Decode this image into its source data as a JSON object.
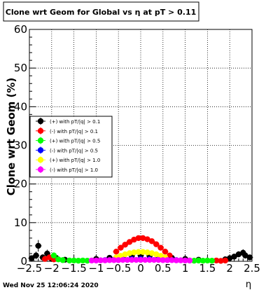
{
  "chart_data": {
    "type": "scatter",
    "title": "Clone wrt Geom for Global vs   η at pT > 0.11",
    "xlabel": "η",
    "ylabel": "Clone wrt Geom (%)",
    "xlim": [
      -2.5,
      2.5
    ],
    "ylim": [
      0,
      60
    ],
    "x_ticks": [
      "−2.5",
      "−2",
      "−1.5",
      "−1",
      "−0.5",
      "0",
      "0.5",
      "1",
      "1.5",
      "2",
      "2.5"
    ],
    "y_ticks": [
      "0",
      "10",
      "20",
      "30",
      "40",
      "50",
      "60"
    ],
    "grid": true,
    "legend_position": "left-middle",
    "footer": "Wed Nov 25 12:06:24 2020",
    "series": [
      {
        "name": "(+) with pT/|q| > 0.1",
        "color": "#000000",
        "points": [
          {
            "x": -2.45,
            "y": 0.8,
            "err": 0.6
          },
          {
            "x": -2.35,
            "y": 1.5,
            "err": 1.0
          },
          {
            "x": -2.3,
            "y": 4.0,
            "err": 1.5
          },
          {
            "x": -2.2,
            "y": 1.0,
            "err": 0.8
          },
          {
            "x": -2.1,
            "y": 2.0,
            "err": 1.0
          },
          {
            "x": -2.0,
            "y": 0.6,
            "err": 0.5
          },
          {
            "x": -1.9,
            "y": 0.9,
            "err": 0.6
          },
          {
            "x": -1.7,
            "y": 0.4,
            "err": 0.3
          },
          {
            "x": -1.0,
            "y": 0.6,
            "err": 0.2
          },
          {
            "x": -0.7,
            "y": 0.9,
            "err": 0.2
          },
          {
            "x": -0.4,
            "y": 1.2,
            "err": 0.2
          },
          {
            "x": -0.2,
            "y": 1.4,
            "err": 0.2
          },
          {
            "x": 0.0,
            "y": 1.5,
            "err": 0.2
          },
          {
            "x": 0.2,
            "y": 1.4,
            "err": 0.2
          },
          {
            "x": 0.4,
            "y": 1.2,
            "err": 0.2
          },
          {
            "x": 0.7,
            "y": 0.9,
            "err": 0.2
          },
          {
            "x": 1.0,
            "y": 0.6,
            "err": 0.2
          },
          {
            "x": 1.3,
            "y": 0.4,
            "err": 0.2
          },
          {
            "x": 1.9,
            "y": 0.5,
            "err": 0.4
          },
          {
            "x": 2.0,
            "y": 0.8,
            "err": 0.5
          },
          {
            "x": 2.1,
            "y": 1.2,
            "err": 0.6
          },
          {
            "x": 2.2,
            "y": 1.8,
            "err": 0.8
          },
          {
            "x": 2.3,
            "y": 2.2,
            "err": 0.9
          },
          {
            "x": 2.35,
            "y": 1.5,
            "err": 0.8
          },
          {
            "x": 2.45,
            "y": 1.0,
            "err": 0.7
          }
        ]
      },
      {
        "name": "(-) with pT/|q| > 0.1",
        "color": "#ff0000",
        "points": [
          {
            "x": -2.15,
            "y": 0.6,
            "err": 0.5
          },
          {
            "x": -2.05,
            "y": 1.0,
            "err": 0.6
          },
          {
            "x": -1.95,
            "y": 0.5,
            "err": 0.4
          },
          {
            "x": -0.55,
            "y": 2.5,
            "err": 0.4
          },
          {
            "x": -0.45,
            "y": 3.5,
            "err": 0.4
          },
          {
            "x": -0.35,
            "y": 4.3,
            "err": 0.4
          },
          {
            "x": -0.25,
            "y": 5.0,
            "err": 0.4
          },
          {
            "x": -0.15,
            "y": 5.6,
            "err": 0.4
          },
          {
            "x": -0.05,
            "y": 6.0,
            "err": 0.4
          },
          {
            "x": 0.05,
            "y": 6.0,
            "err": 0.4
          },
          {
            "x": 0.15,
            "y": 5.7,
            "err": 0.4
          },
          {
            "x": 0.25,
            "y": 5.2,
            "err": 0.4
          },
          {
            "x": 0.35,
            "y": 4.4,
            "err": 0.4
          },
          {
            "x": 0.45,
            "y": 3.5,
            "err": 0.4
          },
          {
            "x": 0.55,
            "y": 2.5,
            "err": 0.4
          },
          {
            "x": 0.65,
            "y": 1.5,
            "err": 0.3
          },
          {
            "x": 1.7,
            "y": 0.2,
            "err": 0.2
          },
          {
            "x": 1.8,
            "y": 0.1,
            "err": 0.2
          },
          {
            "x": 1.9,
            "y": 0.2,
            "err": 0.2
          }
        ]
      },
      {
        "name": "(+) with pT/|q| > 0.5",
        "color": "#00ff00",
        "points": [
          {
            "x": -1.95,
            "y": 1.5,
            "err": 0.8
          },
          {
            "x": -1.85,
            "y": 0.5,
            "err": 0.4
          },
          {
            "x": -1.75,
            "y": 0.3,
            "err": 0.3
          },
          {
            "x": -1.6,
            "y": 0.2,
            "err": 0.2
          },
          {
            "x": -1.5,
            "y": 0.2,
            "err": 0.2
          },
          {
            "x": -1.4,
            "y": 0.15,
            "err": 0.2
          },
          {
            "x": -1.3,
            "y": 0.2,
            "err": 0.2
          },
          {
            "x": -1.2,
            "y": 0.15,
            "err": 0.2
          },
          {
            "x": 1.1,
            "y": 0.2,
            "err": 0.2
          },
          {
            "x": 1.2,
            "y": 0.15,
            "err": 0.2
          },
          {
            "x": 1.3,
            "y": 0.2,
            "err": 0.2
          },
          {
            "x": 1.4,
            "y": 0.15,
            "err": 0.2
          },
          {
            "x": 1.5,
            "y": 0.2,
            "err": 0.2
          },
          {
            "x": 1.6,
            "y": 0.15,
            "err": 0.2
          }
        ]
      },
      {
        "name": "(-) with pT/|q| > 0.5",
        "color": "#0000ff",
        "points": [
          {
            "x": -0.8,
            "y": 0.3,
            "err": 0.1
          },
          {
            "x": -0.6,
            "y": 0.4,
            "err": 0.1
          },
          {
            "x": -0.4,
            "y": 0.5,
            "err": 0.1
          },
          {
            "x": -0.2,
            "y": 0.55,
            "err": 0.1
          },
          {
            "x": 0.0,
            "y": 0.6,
            "err": 0.1
          },
          {
            "x": 0.2,
            "y": 0.55,
            "err": 0.1
          },
          {
            "x": 0.4,
            "y": 0.5,
            "err": 0.1
          },
          {
            "x": 0.6,
            "y": 0.4,
            "err": 0.1
          },
          {
            "x": 0.8,
            "y": 0.3,
            "err": 0.1
          }
        ]
      },
      {
        "name": "(+) with pT/|q| > 1.0",
        "color": "#ffff00",
        "points": [
          {
            "x": -0.55,
            "y": 1.0,
            "err": 0.2
          },
          {
            "x": -0.45,
            "y": 1.4,
            "err": 0.2
          },
          {
            "x": -0.35,
            "y": 1.8,
            "err": 0.2
          },
          {
            "x": -0.25,
            "y": 2.1,
            "err": 0.2
          },
          {
            "x": -0.15,
            "y": 2.3,
            "err": 0.2
          },
          {
            "x": -0.05,
            "y": 2.4,
            "err": 0.2
          },
          {
            "x": 0.05,
            "y": 2.4,
            "err": 0.2
          },
          {
            "x": 0.15,
            "y": 2.3,
            "err": 0.2
          },
          {
            "x": 0.25,
            "y": 2.1,
            "err": 0.2
          },
          {
            "x": 0.35,
            "y": 1.8,
            "err": 0.2
          },
          {
            "x": 0.45,
            "y": 1.4,
            "err": 0.2
          },
          {
            "x": 0.55,
            "y": 1.0,
            "err": 0.2
          }
        ]
      },
      {
        "name": "(-) with pT/|q| > 1.0",
        "color": "#ff00ff",
        "points": [
          {
            "x": -1.1,
            "y": 0.2,
            "err": 0.1
          },
          {
            "x": -1.0,
            "y": 0.2,
            "err": 0.1
          },
          {
            "x": -0.9,
            "y": 0.25,
            "err": 0.1
          },
          {
            "x": -0.8,
            "y": 0.25,
            "err": 0.1
          },
          {
            "x": -0.7,
            "y": 0.3,
            "err": 0.1
          },
          {
            "x": -0.6,
            "y": 0.3,
            "err": 0.1
          },
          {
            "x": -0.5,
            "y": 0.3,
            "err": 0.1
          },
          {
            "x": -0.4,
            "y": 0.35,
            "err": 0.1
          },
          {
            "x": -0.3,
            "y": 0.35,
            "err": 0.1
          },
          {
            "x": -0.2,
            "y": 0.35,
            "err": 0.1
          },
          {
            "x": -0.1,
            "y": 0.35,
            "err": 0.1
          },
          {
            "x": 0.0,
            "y": 0.35,
            "err": 0.1
          },
          {
            "x": 0.1,
            "y": 0.35,
            "err": 0.1
          },
          {
            "x": 0.2,
            "y": 0.35,
            "err": 0.1
          },
          {
            "x": 0.3,
            "y": 0.35,
            "err": 0.1
          },
          {
            "x": 0.4,
            "y": 0.35,
            "err": 0.1
          },
          {
            "x": 0.5,
            "y": 0.3,
            "err": 0.1
          },
          {
            "x": 0.6,
            "y": 0.3,
            "err": 0.1
          },
          {
            "x": 0.7,
            "y": 0.3,
            "err": 0.1
          },
          {
            "x": 0.8,
            "y": 0.25,
            "err": 0.1
          },
          {
            "x": 0.9,
            "y": 0.25,
            "err": 0.1
          },
          {
            "x": 1.0,
            "y": 0.2,
            "err": 0.1
          },
          {
            "x": 1.1,
            "y": 0.2,
            "err": 0.1
          }
        ]
      }
    ]
  }
}
